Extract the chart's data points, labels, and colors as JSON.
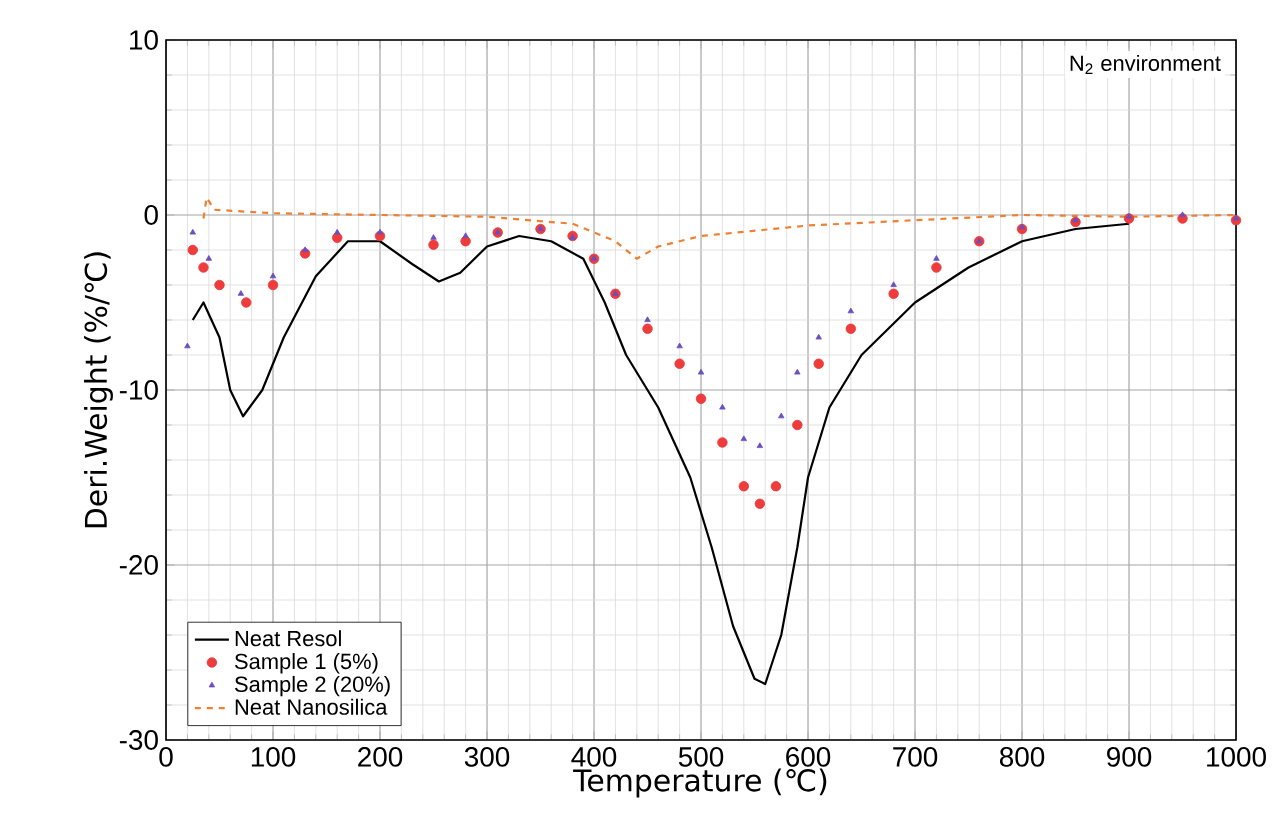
{
  "chart_data": {
    "type": "line",
    "xlabel": "Temperature (℃)",
    "ylabel": "Deri.Weight (%/℃)",
    "xlim": [
      0,
      1000
    ],
    "ylim": [
      -30,
      10
    ],
    "xticks": [
      0,
      100,
      200,
      300,
      400,
      500,
      600,
      700,
      800,
      900,
      1000
    ],
    "yticks": [
      -30,
      -20,
      -10,
      0,
      10
    ],
    "grid": true,
    "legend": "bottom left",
    "annotations": [
      "N$_{2}$ environment"
    ],
    "series": [
      {
        "name": "Neat Resol",
        "color": "#000000",
        "line_style": "solid",
        "x": [
          25,
          35,
          50,
          60,
          72,
          90,
          110,
          140,
          170,
          200,
          230,
          255,
          275,
          300,
          330,
          360,
          390,
          410,
          430,
          460,
          490,
          510,
          530,
          550,
          560,
          575,
          590,
          600,
          620,
          650,
          700,
          750,
          800,
          850,
          900
        ],
        "values": [
          -6,
          -5,
          -7,
          -10,
          -11.5,
          -10,
          -7,
          -3.5,
          -1.5,
          -1.5,
          -2.8,
          -3.8,
          -3.3,
          -1.8,
          -1.2,
          -1.5,
          -2.5,
          -5,
          -8,
          -11,
          -15,
          -19,
          -23.5,
          -26.5,
          -26.8,
          -24,
          -19,
          -15,
          -11,
          -8,
          -5,
          -3,
          -1.5,
          -0.8,
          -0.5
        ]
      },
      {
        "name": "Sample 1 (5%)",
        "type": "scatter",
        "marker": "circle",
        "color": "#ee3b3b",
        "x": [
          25,
          35,
          50,
          75,
          100,
          130,
          160,
          200,
          250,
          280,
          310,
          350,
          380,
          400,
          420,
          450,
          480,
          500,
          520,
          540,
          555,
          570,
          590,
          610,
          640,
          680,
          720,
          760,
          800,
          850,
          900,
          950,
          1000
        ],
        "values": [
          -2,
          -3,
          -4,
          -5,
          -4,
          -2.2,
          -1.3,
          -1.2,
          -1.7,
          -1.5,
          -1,
          -0.8,
          -1.2,
          -2.5,
          -4.5,
          -6.5,
          -8.5,
          -10.5,
          -13,
          -15.5,
          -16.5,
          -15.5,
          -12,
          -8.5,
          -6.5,
          -4.5,
          -3,
          -1.5,
          -0.8,
          -0.4,
          -0.2,
          -0.2,
          -0.3
        ]
      },
      {
        "name": "Sample 2 (20%)",
        "type": "scatter",
        "marker": "triangle",
        "color": "#6a4fc0",
        "x": [
          20,
          25,
          40,
          70,
          100,
          130,
          160,
          200,
          250,
          280,
          310,
          350,
          380,
          400,
          420,
          450,
          480,
          500,
          520,
          540,
          555,
          575,
          590,
          610,
          640,
          680,
          720,
          760,
          800,
          850,
          900,
          950,
          1000
        ],
        "values": [
          -7.5,
          -1,
          -2.5,
          -4.5,
          -3.5,
          -2,
          -1,
          -1,
          -1.3,
          -1.2,
          -1,
          -0.8,
          -1.3,
          -2.5,
          -4.5,
          -6,
          -7.5,
          -9,
          -11,
          -12.8,
          -13.2,
          -11.5,
          -9,
          -7,
          -5.5,
          -4,
          -2.5,
          -1.5,
          -0.7,
          -0.3,
          -0.1,
          0,
          -0.2
        ]
      },
      {
        "name": "Neat Nanosilica",
        "color": "#f07f30",
        "line_style": "dashed",
        "x": [
          35,
          38,
          45,
          100,
          200,
          300,
          380,
          420,
          440,
          460,
          500,
          550,
          600,
          700,
          800,
          900,
          1000
        ],
        "values": [
          -0.2,
          1,
          0.3,
          0.1,
          0,
          -0.1,
          -0.5,
          -1.5,
          -2.5,
          -1.8,
          -1.2,
          -0.9,
          -0.6,
          -0.3,
          0,
          -0.1,
          0
        ]
      }
    ]
  }
}
